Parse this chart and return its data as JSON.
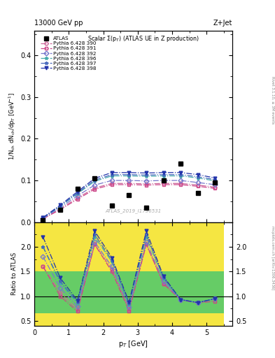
{
  "title_top_left": "13000 GeV pp",
  "title_top_right": "Z+Jet",
  "plot_title": "Scalar Σ(p_T) (ATLAS UE in Z production)",
  "ylabel_main": "1/N$_{ch}$ dN$_{ch}$/dp$_T$ [GeV]",
  "ylabel_ratio": "Ratio to ATLAS",
  "xlabel": "p$_T$ [GeV]",
  "watermark": "ATLAS_2019_I1736531",
  "rivet_label": "Rivet 3.1.10, ≥ 3M events",
  "mcplots_label": "mcplots.cern.ch [arXiv:1306.3436]",
  "atlas_x": [
    0.25,
    0.75,
    1.25,
    1.75,
    2.25,
    2.75,
    3.25,
    3.75,
    4.25,
    4.75,
    5.25
  ],
  "atlas_y": [
    0.005,
    0.03,
    0.08,
    0.105,
    0.04,
    0.065,
    0.035,
    0.1,
    0.14,
    0.07,
    0.095
  ],
  "series": [
    {
      "label": "Pythia 6.428 390",
      "color": "#cc6699",
      "marker": "o",
      "fillstyle": "none",
      "linestyle": "-.",
      "x": [
        0.25,
        0.75,
        1.25,
        1.75,
        2.25,
        2.75,
        3.25,
        3.75,
        4.25,
        4.75,
        5.25
      ],
      "y": [
        0.008,
        0.032,
        0.058,
        0.082,
        0.093,
        0.093,
        0.092,
        0.093,
        0.093,
        0.089,
        0.084
      ]
    },
    {
      "label": "Pythia 6.428 391",
      "color": "#cc4488",
      "marker": "s",
      "fillstyle": "none",
      "linestyle": "-.",
      "x": [
        0.25,
        0.75,
        1.25,
        1.75,
        2.25,
        2.75,
        3.25,
        3.75,
        4.25,
        4.75,
        5.25
      ],
      "y": [
        0.008,
        0.03,
        0.055,
        0.079,
        0.09,
        0.09,
        0.089,
        0.09,
        0.09,
        0.086,
        0.081
      ]
    },
    {
      "label": "Pythia 6.428 392",
      "color": "#7777cc",
      "marker": "D",
      "fillstyle": "none",
      "linestyle": "-.",
      "x": [
        0.25,
        0.75,
        1.25,
        1.75,
        2.25,
        2.75,
        3.25,
        3.75,
        4.25,
        4.75,
        5.25
      ],
      "y": [
        0.009,
        0.035,
        0.063,
        0.089,
        0.1,
        0.1,
        0.099,
        0.1,
        0.1,
        0.095,
        0.09
      ]
    },
    {
      "label": "Pythia 6.428 396",
      "color": "#44aaaa",
      "marker": "*",
      "fillstyle": "full",
      "linestyle": "-.",
      "x": [
        0.25,
        0.75,
        1.25,
        1.75,
        2.25,
        2.75,
        3.25,
        3.75,
        4.25,
        4.75,
        5.25
      ],
      "y": [
        0.01,
        0.038,
        0.068,
        0.098,
        0.111,
        0.111,
        0.11,
        0.111,
        0.111,
        0.106,
        0.099
      ]
    },
    {
      "label": "Pythia 6.428 397",
      "color": "#4466bb",
      "marker": "*",
      "fillstyle": "none",
      "linestyle": "-.",
      "x": [
        0.25,
        0.75,
        1.25,
        1.75,
        2.25,
        2.75,
        3.25,
        3.75,
        4.25,
        4.75,
        5.25
      ],
      "y": [
        0.01,
        0.039,
        0.07,
        0.101,
        0.114,
        0.114,
        0.113,
        0.114,
        0.114,
        0.109,
        0.102
      ]
    },
    {
      "label": "Pythia 6.428 398",
      "color": "#2233aa",
      "marker": "v",
      "fillstyle": "full",
      "linestyle": "-.",
      "x": [
        0.25,
        0.75,
        1.25,
        1.75,
        2.25,
        2.75,
        3.25,
        3.75,
        4.25,
        4.75,
        5.25
      ],
      "y": [
        0.011,
        0.041,
        0.073,
        0.105,
        0.119,
        0.119,
        0.118,
        0.119,
        0.119,
        0.114,
        0.106
      ]
    }
  ],
  "ratio_x": [
    0.25,
    0.75,
    1.25,
    1.75,
    2.25,
    2.75,
    3.25,
    3.75,
    4.25,
    4.75,
    5.25
  ],
  "ratio_series": [
    {
      "color": "#cc6699",
      "marker": "o",
      "fillstyle": "none",
      "linestyle": "-.",
      "y": [
        1.6,
        1.07,
        0.73,
        2.05,
        1.55,
        0.73,
        2.05,
        1.25,
        0.93,
        0.86,
        0.95
      ]
    },
    {
      "color": "#cc4488",
      "marker": "s",
      "fillstyle": "none",
      "linestyle": "-.",
      "y": [
        1.6,
        1.0,
        0.69,
        2.05,
        1.5,
        0.7,
        2.05,
        1.25,
        0.93,
        0.86,
        0.9
      ]
    },
    {
      "color": "#7777cc",
      "marker": "D",
      "fillstyle": "none",
      "linestyle": "-.",
      "y": [
        1.8,
        1.17,
        0.79,
        2.1,
        1.6,
        0.78,
        2.1,
        1.3,
        0.93,
        0.87,
        0.95
      ]
    },
    {
      "color": "#44aaaa",
      "marker": "*",
      "fillstyle": "full",
      "linestyle": "-.",
      "y": [
        2.0,
        1.27,
        0.85,
        2.2,
        1.7,
        0.83,
        2.2,
        1.35,
        0.93,
        0.87,
        0.95
      ]
    },
    {
      "color": "#4466bb",
      "marker": "*",
      "fillstyle": "none",
      "linestyle": "-.",
      "y": [
        2.0,
        1.3,
        0.88,
        2.25,
        1.73,
        0.85,
        2.25,
        1.37,
        0.93,
        0.87,
        0.95
      ]
    },
    {
      "color": "#2233aa",
      "marker": "v",
      "fillstyle": "full",
      "linestyle": "-.",
      "y": [
        2.2,
        1.37,
        0.91,
        2.32,
        1.78,
        0.88,
        2.32,
        1.4,
        0.93,
        0.87,
        0.95
      ]
    }
  ],
  "band_edges": [
    0.0,
    0.5,
    1.0,
    1.5,
    2.0,
    2.5,
    3.0,
    3.5,
    4.0,
    4.5,
    5.0,
    5.5
  ],
  "yellow_lo": [
    0.4,
    0.4,
    0.4,
    0.4,
    0.4,
    0.4,
    0.4,
    0.4,
    0.4,
    0.4,
    0.4
  ],
  "yellow_hi": [
    2.5,
    2.5,
    2.5,
    2.5,
    2.5,
    2.5,
    2.5,
    2.5,
    2.5,
    2.5,
    2.5
  ],
  "green_lo": [
    0.65,
    0.65,
    0.65,
    0.65,
    0.65,
    0.65,
    0.65,
    0.65,
    0.65,
    0.65,
    0.65
  ],
  "green_hi": [
    1.5,
    1.5,
    1.5,
    1.5,
    1.5,
    1.5,
    1.5,
    1.5,
    1.5,
    1.5,
    1.5
  ],
  "ylim_main": [
    0.0,
    0.46
  ],
  "ylim_ratio": [
    0.4,
    2.5
  ],
  "xlim": [
    0.0,
    5.75
  ],
  "yticks_main": [
    0.0,
    0.1,
    0.2,
    0.3,
    0.4
  ],
  "yticks_ratio": [
    0.5,
    1.0,
    1.5,
    2.0
  ]
}
